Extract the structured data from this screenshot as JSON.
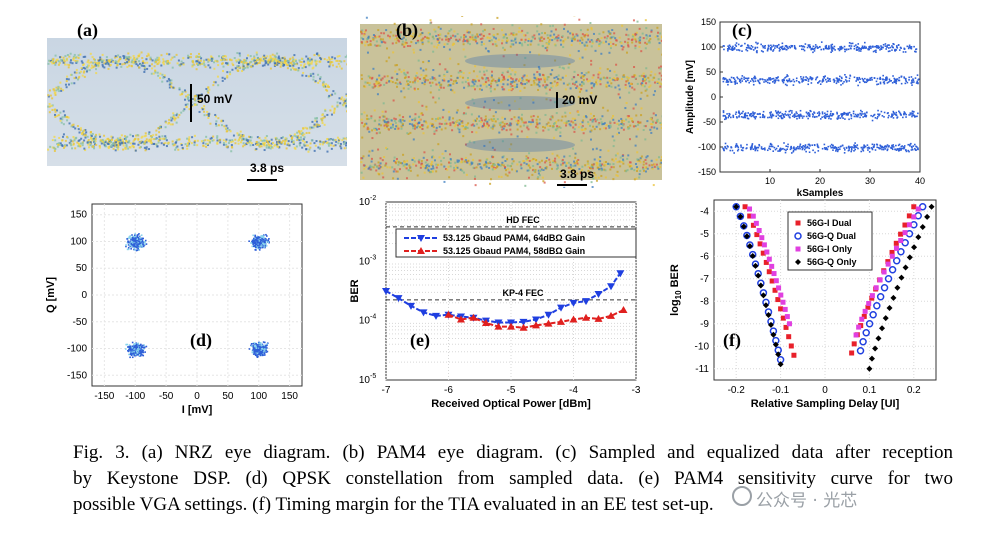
{
  "panels": {
    "a": {
      "label": "(a)",
      "annotation": "50 mV",
      "time": "3.8 ps",
      "type": "nrz-eye"
    },
    "b": {
      "label": "(b)",
      "annotation": "20 mV",
      "time": "3.8 ps",
      "type": "pam4-eye"
    },
    "c": {
      "label": "(c)"
    },
    "d": {
      "label": "(d)"
    },
    "e": {
      "label": "(e)"
    },
    "f": {
      "label": "(f)"
    }
  },
  "chart_data": [
    {
      "id": "c",
      "type": "scatter",
      "title": "",
      "xlabel": "kSamples",
      "ylabel": "Amplitude [mV]",
      "xlim": [
        0,
        40
      ],
      "ylim": [
        -150,
        150
      ],
      "xticks": [
        "10",
        "20",
        "30",
        "40"
      ],
      "yticks": [
        "150",
        "100",
        "50",
        "0",
        "-50",
        "-100",
        "-150"
      ],
      "levels": [
        100,
        35,
        -35,
        -100
      ]
    },
    {
      "id": "d",
      "type": "scatter",
      "title": "",
      "xlabel": "I [mV]",
      "ylabel": "Q [mV]",
      "xlim": [
        -170,
        170
      ],
      "ylim": [
        -170,
        170
      ],
      "xticks": [
        "-150",
        "-100",
        "-50",
        "0",
        "50",
        "100",
        "150"
      ],
      "yticks": [
        "150",
        "100",
        "50",
        "0",
        "-50",
        "-100",
        "-150"
      ],
      "clusters": [
        [
          -100,
          100
        ],
        [
          100,
          100
        ],
        [
          -100,
          -100
        ],
        [
          100,
          -100
        ]
      ]
    },
    {
      "id": "e",
      "type": "line",
      "xlabel": "Received Optical Power [dBm]",
      "ylabel": "BER",
      "xlim": [
        -7,
        -3
      ],
      "ylim_log10": [
        -5,
        -2
      ],
      "xticks": [
        "-7",
        "-6",
        "-5",
        "-4",
        "-3"
      ],
      "yticks": [
        "10",
        "10",
        "10",
        "10"
      ],
      "ytick_exponents": [
        "-2",
        "-3",
        "-4",
        "-5"
      ],
      "hlines": [
        {
          "label": "HD FEC",
          "log10": -2.42
        },
        {
          "label": "KP-4 FEC",
          "log10": -3.65
        }
      ],
      "series": [
        {
          "name": "53.125 Gbaud PAM4, 64dBΩ Gain",
          "color": "#1f3fe0",
          "marker": "triangle-down",
          "x": [
            -7.0,
            -6.8,
            -6.6,
            -6.4,
            -6.2,
            -6.0,
            -5.8,
            -5.6,
            -5.4,
            -5.2,
            -5.0,
            -4.8,
            -4.6,
            -4.4,
            -4.2,
            -4.0,
            -3.8,
            -3.6,
            -3.4,
            -3.25
          ],
          "log10": [
            -3.5,
            -3.62,
            -3.75,
            -3.86,
            -3.92,
            -3.9,
            -3.93,
            -3.95,
            -4.0,
            -4.03,
            -4.03,
            -4.02,
            -3.98,
            -3.9,
            -3.78,
            -3.7,
            -3.67,
            -3.55,
            -3.42,
            -3.2
          ]
        },
        {
          "name": "53.125 Gbaud PAM4, 58dBΩ Gain",
          "color": "#e0201f",
          "marker": "triangle-up",
          "x": [
            -6.0,
            -5.8,
            -5.6,
            -5.4,
            -5.2,
            -5.0,
            -4.8,
            -4.6,
            -4.4,
            -4.2,
            -4.0,
            -3.8,
            -3.6,
            -3.4,
            -3.2
          ],
          "log10": [
            -3.9,
            -3.98,
            -3.95,
            -4.04,
            -4.1,
            -4.1,
            -4.12,
            -4.08,
            -4.05,
            -4.02,
            -3.98,
            -3.95,
            -3.97,
            -3.92,
            -3.82
          ]
        }
      ]
    },
    {
      "id": "f",
      "type": "scatter",
      "xlabel": "Relative Sampling Delay [UI]",
      "ylabel": "log",
      "ylabel_sub": "10",
      "ylabel_suffix": " BER",
      "xlim": [
        -0.25,
        0.25
      ],
      "ylim": [
        -11.5,
        -3.5
      ],
      "xticks": [
        "-0.2",
        "-0.1",
        "0",
        "0.1",
        "0.2"
      ],
      "yticks": [
        "-4",
        "-5",
        "-6",
        "-7",
        "-8",
        "-9",
        "-10",
        "-11"
      ],
      "series": [
        {
          "name": "56G-I Dual",
          "color": "#e8202a",
          "marker": "square",
          "left": {
            "x0": -0.18,
            "y0": -3.8,
            "x1": -0.07,
            "y1": -10.4
          },
          "right": {
            "x0": 0.06,
            "y0": -10.3,
            "x1": 0.2,
            "y1": -3.8
          }
        },
        {
          "name": "56G-Q Dual",
          "color": "#1f3fe0",
          "marker": "circle",
          "left": {
            "x0": -0.2,
            "y0": -3.8,
            "x1": -0.1,
            "y1": -10.6
          },
          "right": {
            "x0": 0.08,
            "y0": -10.2,
            "x1": 0.22,
            "y1": -3.8
          }
        },
        {
          "name": "56G-I Only",
          "color": "#e040e0",
          "marker": "square",
          "left": {
            "x0": -0.17,
            "y0": -3.9,
            "x1": -0.08,
            "y1": -9.0
          },
          "right": {
            "x0": 0.07,
            "y0": -9.5,
            "x1": 0.21,
            "y1": -3.9
          }
        },
        {
          "name": "56G-Q Only",
          "color": "#000000",
          "marker": "diamond",
          "left": {
            "x0": -0.2,
            "y0": -3.8,
            "x1": -0.1,
            "y1": -10.8
          },
          "right": {
            "x0": 0.1,
            "y0": -11.0,
            "x1": 0.24,
            "y1": -3.8
          }
        }
      ]
    }
  ],
  "caption": {
    "line1": "Fig. 3.  (a) NRZ eye diagram. (b) PAM4 eye diagram. (c) Sampled and equalized data after reception",
    "line2": "by Keystone DSP. (d) QPSK constellation from sampled data. (e) PAM4 sensitivity curve for two",
    "line3": "possible VGA settings. (f) Timing margin for the TIA evaluated in an EE test set-up."
  },
  "watermark": "公众号 · 光芯"
}
